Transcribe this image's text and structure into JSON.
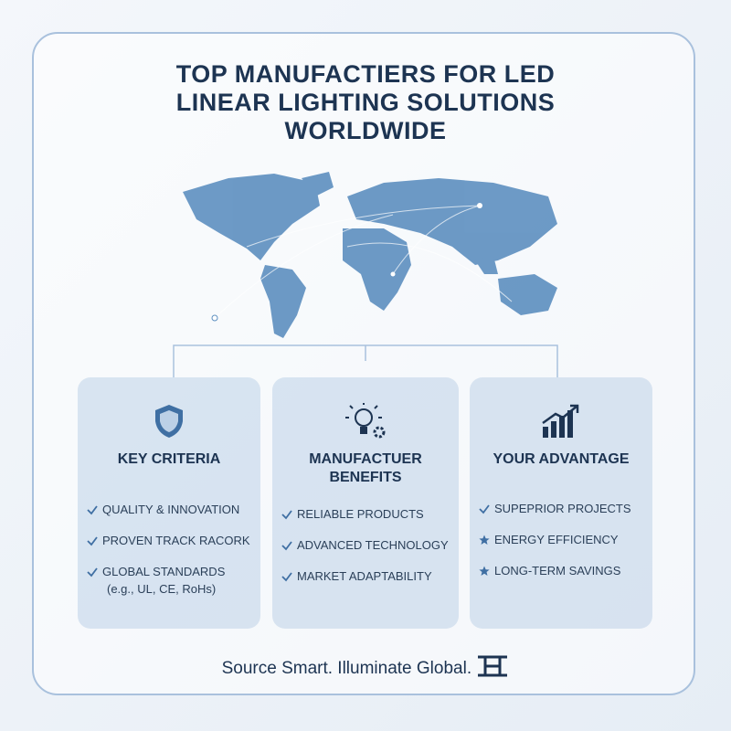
{
  "header": {
    "title_lines": [
      "TOP MANUFACTIERS FOR LED",
      "LINEAR LIGHTING SOLUTIONS",
      "WORLDWIDE"
    ]
  },
  "cards": [
    {
      "heading": "KEY CRITERIA",
      "items": [
        {
          "text": "QUALITY & INNOVATION"
        },
        {
          "text": "PROVEN TRACK RACORK"
        },
        {
          "text": "GLOBAL STANDARDS",
          "note": "(e.g., UL, CE, RoHs)"
        }
      ]
    },
    {
      "heading": "MANUFACTUER BENEFITS",
      "items": [
        {
          "text": "RELIABLE PRODUCTS"
        },
        {
          "text": "ADVANCED TECHNOLOGY"
        },
        {
          "text": "MARKET ADAPTABILITY"
        }
      ]
    },
    {
      "heading": "YOUR ADVANTAGE",
      "items": [
        {
          "text": "SUPEPRIOR PROJECTS"
        },
        {
          "text": "ENERGY EFFICIENCY"
        },
        {
          "text": "LONG-TERM SAVINGS"
        }
      ]
    }
  ],
  "footer": {
    "tagline": "Source Smart. Illuminate Global."
  }
}
